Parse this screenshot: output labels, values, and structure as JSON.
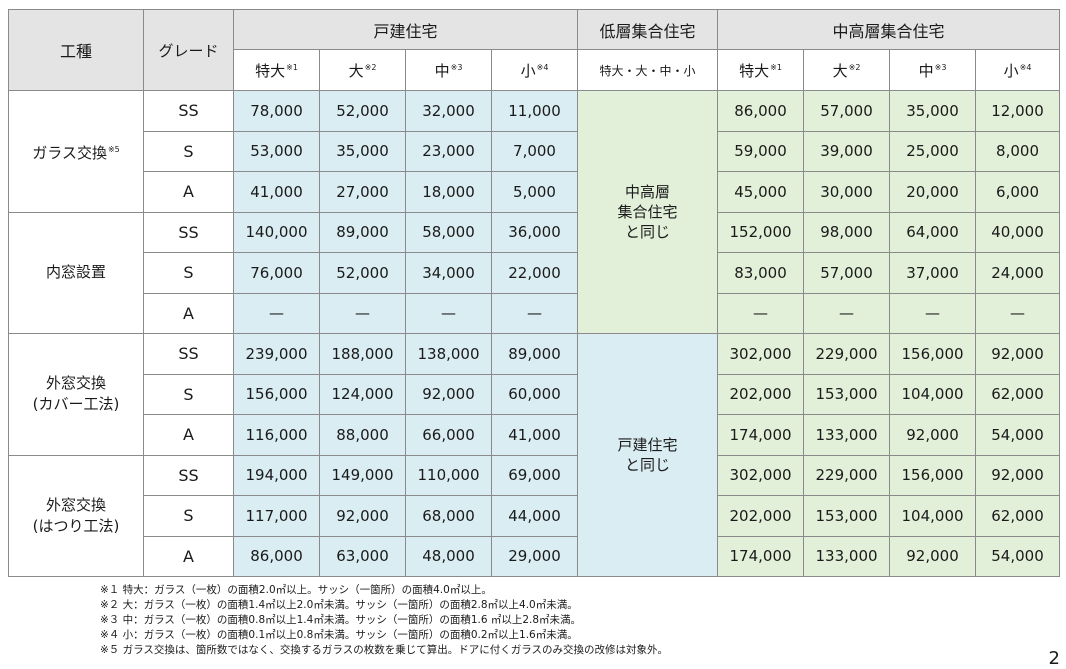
{
  "headers": {
    "work_type": "工種",
    "grade": "グレード",
    "detached": "戸建住宅",
    "low_rise": "低層集合住宅",
    "mid_high_rise": "中高層集合住宅",
    "size_labels": [
      {
        "text": "特大",
        "mark": "※1"
      },
      {
        "text": "大",
        "mark": "※2"
      },
      {
        "text": "中",
        "mark": "※3"
      },
      {
        "text": "小",
        "mark": "※4"
      }
    ],
    "low_rise_sizes": "特大・大・中・小"
  },
  "categories": [
    {
      "name": "ガラス交換",
      "mark": "※5",
      "line2": ""
    },
    {
      "name": "内窓設置",
      "mark": "",
      "line2": ""
    },
    {
      "name": "外窓交換",
      "mark": "",
      "line2": "(カバー工法)"
    },
    {
      "name": "外窓交換",
      "mark": "",
      "line2": "(はつり工法)"
    }
  ],
  "rows": [
    {
      "grade": "SS",
      "detached": [
        "78,000",
        "52,000",
        "32,000",
        "11,000"
      ],
      "mid": [
        "86,000",
        "57,000",
        "35,000",
        "12,000"
      ]
    },
    {
      "grade": "S",
      "detached": [
        "53,000",
        "35,000",
        "23,000",
        "7,000"
      ],
      "mid": [
        "59,000",
        "39,000",
        "25,000",
        "8,000"
      ]
    },
    {
      "grade": "A",
      "detached": [
        "41,000",
        "27,000",
        "18,000",
        "5,000"
      ],
      "mid": [
        "45,000",
        "30,000",
        "20,000",
        "6,000"
      ]
    },
    {
      "grade": "SS",
      "detached": [
        "140,000",
        "89,000",
        "58,000",
        "36,000"
      ],
      "mid": [
        "152,000",
        "98,000",
        "64,000",
        "40,000"
      ]
    },
    {
      "grade": "S",
      "detached": [
        "76,000",
        "52,000",
        "34,000",
        "22,000"
      ],
      "mid": [
        "83,000",
        "57,000",
        "37,000",
        "24,000"
      ]
    },
    {
      "grade": "A",
      "detached": [
        "—",
        "—",
        "—",
        "—"
      ],
      "mid": [
        "—",
        "—",
        "—",
        "—"
      ]
    },
    {
      "grade": "SS",
      "detached": [
        "239,000",
        "188,000",
        "138,000",
        "89,000"
      ],
      "mid": [
        "302,000",
        "229,000",
        "156,000",
        "92,000"
      ]
    },
    {
      "grade": "S",
      "detached": [
        "156,000",
        "124,000",
        "92,000",
        "60,000"
      ],
      "mid": [
        "202,000",
        "153,000",
        "104,000",
        "62,000"
      ]
    },
    {
      "grade": "A",
      "detached": [
        "116,000",
        "88,000",
        "66,000",
        "41,000"
      ],
      "mid": [
        "174,000",
        "133,000",
        "92,000",
        "54,000"
      ]
    },
    {
      "grade": "SS",
      "detached": [
        "194,000",
        "149,000",
        "110,000",
        "69,000"
      ],
      "mid": [
        "302,000",
        "229,000",
        "156,000",
        "92,000"
      ]
    },
    {
      "grade": "S",
      "detached": [
        "117,000",
        "92,000",
        "68,000",
        "44,000"
      ],
      "mid": [
        "202,000",
        "153,000",
        "104,000",
        "62,000"
      ]
    },
    {
      "grade": "A",
      "detached": [
        "86,000",
        "63,000",
        "48,000",
        "29,000"
      ],
      "mid": [
        "174,000",
        "133,000",
        "92,000",
        "54,000"
      ]
    }
  ],
  "low_rise_merged": [
    {
      "line1": "中高層",
      "line2": "集合住宅",
      "line3": "と同じ"
    },
    {
      "line1": "戸建住宅",
      "line2": "と同じ",
      "line3": ""
    }
  ],
  "notes": [
    "※１ 特大：ガラス（一枚）の面積2.0㎡以上。サッシ（一箇所）の面積4.0㎡以上。",
    "※２ 大：ガラス（一枚）の面積1.4㎡以上2.0㎡未満。サッシ（一箇所）の面積2.8㎡以上4.0㎡未満。",
    "※３ 中：ガラス（一枚）の面積0.8㎡以上1.4㎡未満。サッシ（一箇所）の面積1.6 ㎡以上2.8㎡未満。",
    "※４ 小：ガラス（一枚）の面積0.1㎡以上0.8㎡未満。サッシ（一箇所）の面積0.2㎡以上1.6㎡未満。",
    "※５ ガラス交換は、箇所数ではなく、交換するガラスの枚数を乗じて算出。ドアに付くガラスのみ交換の改修は対象外。"
  ],
  "page_number": "2",
  "colors": {
    "header_bg": "#e4e4e4",
    "detached_bg": "#daedf2",
    "mid_high_bg": "#e2f0d9",
    "border": "#8a8a8a"
  }
}
